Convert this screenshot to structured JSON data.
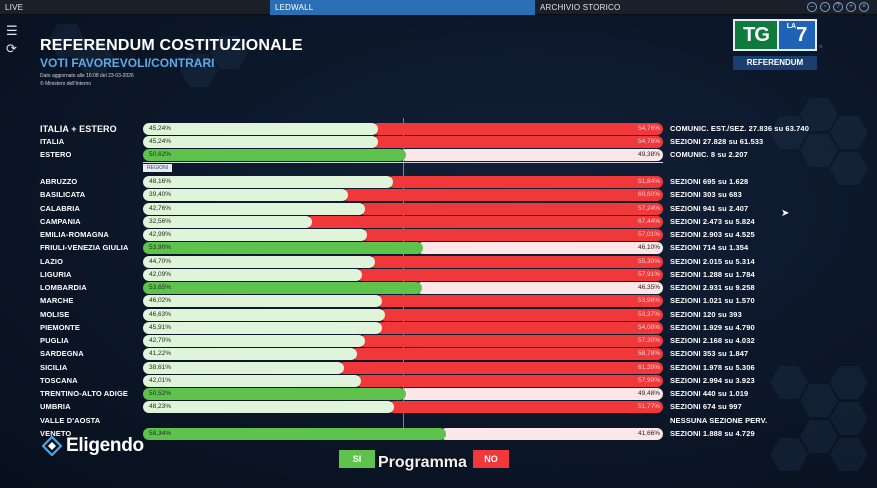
{
  "topbar": {
    "tabs": [
      {
        "label": "LIVE"
      },
      {
        "label": "LEDWALL",
        "active": true
      },
      {
        "label": "ARCHIVIO STORICO"
      }
    ],
    "controls": [
      "minus-icon",
      "restore-icon",
      "help-icon",
      "expand-icon",
      "close-icon"
    ]
  },
  "header": {
    "title": "REFERENDUM COSTITUZIONALE",
    "subtitle": "VOTI FAVOREVOLI/CONTRARI",
    "updated": "Dato aggiornato alle 16:08 del 23-03-2026",
    "source": "© Ministero dell'Interno"
  },
  "logo": {
    "tg": "TG",
    "la": "LA",
    "seven": "7",
    "tag": "REFERENDUM",
    "mark": "○"
  },
  "colors": {
    "si": "#5ec34d",
    "no": "#f0373a",
    "accent": "#5fa9e8"
  },
  "regioni_tag": "REGIONI",
  "totals": [
    {
      "name": "ITALIA + ESTERO",
      "si": "45,24%",
      "no": "54,76%",
      "sez": "COMUNIC. EST./SEZ. 27.836 su 63.740",
      "si_value": 45.24
    },
    {
      "name": "ITALIA",
      "si": "45,24%",
      "no": "54,76%",
      "sez": "SEZIONI 27.828 su 61.533",
      "si_value": 45.24
    },
    {
      "name": "ESTERO",
      "si": "50,62%",
      "no": "49,38%",
      "sez": "COMUNIC. 8 su 2.207",
      "si_value": 50.62
    }
  ],
  "regions": [
    {
      "name": "ABRUZZO",
      "si": "48,16%",
      "no": "51,84%",
      "sez": "SEZIONI 695 su 1.628",
      "si_value": 48.16
    },
    {
      "name": "BASILICATA",
      "si": "39,40%",
      "no": "60,60%",
      "sez": "SEZIONI 303 su 683",
      "si_value": 39.4
    },
    {
      "name": "CALABRIA",
      "si": "42,76%",
      "no": "57,24%",
      "sez": "SEZIONI 941 su 2.407",
      "si_value": 42.76
    },
    {
      "name": "CAMPANIA",
      "si": "32,56%",
      "no": "67,44%",
      "sez": "SEZIONI 2.473 su 5.824",
      "si_value": 32.56
    },
    {
      "name": "EMILIA-ROMAGNA",
      "si": "42,99%",
      "no": "57,01%",
      "sez": "SEZIONI 2.903 su 4.525",
      "si_value": 42.99
    },
    {
      "name": "FRIULI-VENEZIA GIULIA",
      "si": "53,90%",
      "no": "46,10%",
      "sez": "SEZIONI 714 su 1.354",
      "si_value": 53.9
    },
    {
      "name": "LAZIO",
      "si": "44,70%",
      "no": "55,30%",
      "sez": "SEZIONI 2.015 su 5.314",
      "si_value": 44.7
    },
    {
      "name": "LIGURIA",
      "si": "42,09%",
      "no": "57,91%",
      "sez": "SEZIONI 1.288 su 1.784",
      "si_value": 42.09
    },
    {
      "name": "LOMBARDIA",
      "si": "53,65%",
      "no": "46,35%",
      "sez": "SEZIONI 2.931 su 9.258",
      "si_value": 53.65
    },
    {
      "name": "MARCHE",
      "si": "46,02%",
      "no": "53,98%",
      "sez": "SEZIONI 1.021 su 1.570",
      "si_value": 46.02
    },
    {
      "name": "MOLISE",
      "si": "46,63%",
      "no": "53,37%",
      "sez": "SEZIONI 120 su 393",
      "si_value": 46.63
    },
    {
      "name": "PIEMONTE",
      "si": "45,91%",
      "no": "54,09%",
      "sez": "SEZIONI 1.929 su 4.790",
      "si_value": 45.91
    },
    {
      "name": "PUGLIA",
      "si": "42,70%",
      "no": "57,30%",
      "sez": "SEZIONI 2.168 su 4.032",
      "si_value": 42.7
    },
    {
      "name": "SARDEGNA",
      "si": "41,22%",
      "no": "58,78%",
      "sez": "SEZIONI 353 su 1.847",
      "si_value": 41.22
    },
    {
      "name": "SICILIA",
      "si": "38,61%",
      "no": "61,39%",
      "sez": "SEZIONI 1.978 su 5.306",
      "si_value": 38.61
    },
    {
      "name": "TOSCANA",
      "si": "42,01%",
      "no": "57,99%",
      "sez": "SEZIONI 2.994 su 3.923",
      "si_value": 42.01
    },
    {
      "name": "TRENTINO-ALTO ADIGE",
      "si": "50,52%",
      "no": "49,48%",
      "sez": "SEZIONI 440 su 1.019",
      "si_value": 50.52
    },
    {
      "name": "UMBRIA",
      "si": "48,23%",
      "no": "51,77%",
      "sez": "SEZIONI 674 su 997",
      "si_value": 48.23
    },
    {
      "name": "VALLE D'AOSTA",
      "si": "",
      "no": "",
      "sez": "NESSUNA SEZIONE PERV.",
      "si_value": null
    },
    {
      "name": "VENETO",
      "si": "58,34%",
      "no": "41,66%",
      "sez": "SEZIONI 1.888 su 4.729",
      "si_value": 58.34
    }
  ],
  "footer": {
    "brand": "Eligendo",
    "legend_si": "SI",
    "legend_no": "NO",
    "overlay": "Programma"
  }
}
